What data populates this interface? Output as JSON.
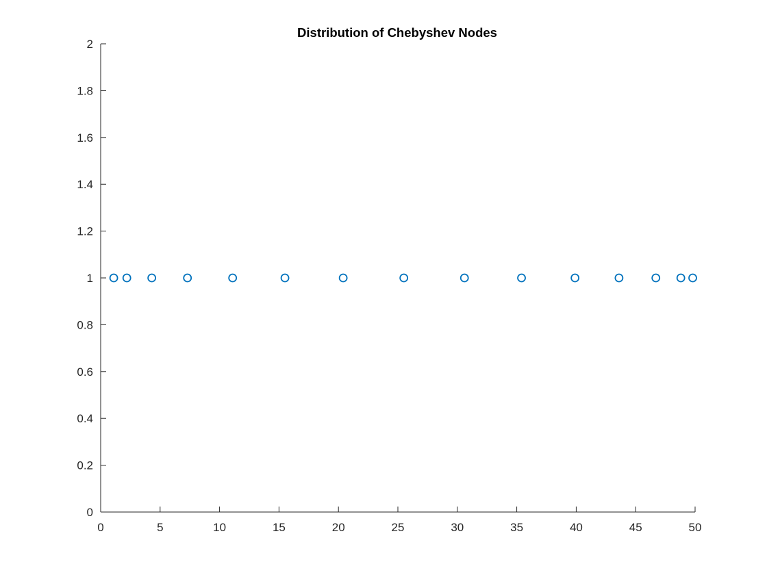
{
  "chart_data": {
    "type": "scatter",
    "title": "Distribution of Chebyshev Nodes",
    "xlabel": "",
    "ylabel": "",
    "xlim": [
      0,
      50
    ],
    "ylim": [
      0,
      2
    ],
    "xticks": [
      0,
      5,
      10,
      15,
      20,
      25,
      30,
      35,
      40,
      45,
      50
    ],
    "yticks": [
      0,
      0.2,
      0.4,
      0.6,
      0.8,
      1,
      1.2,
      1.4,
      1.6,
      1.8,
      2
    ],
    "xtick_labels": [
      "0",
      "5",
      "10",
      "15",
      "20",
      "25",
      "30",
      "35",
      "40",
      "45",
      "50"
    ],
    "ytick_labels": [
      "0",
      "0.2",
      "0.4",
      "0.6",
      "0.8",
      "1",
      "1.2",
      "1.4",
      "1.6",
      "1.8",
      "2"
    ],
    "grid": false,
    "marker": "circle-open",
    "marker_color": "#0072BD",
    "series": [
      {
        "x": [
          1.1,
          2.2,
          4.3,
          7.3,
          11.1,
          15.5,
          20.4,
          25.5,
          30.6,
          35.4,
          39.9,
          43.6,
          46.7,
          48.8,
          49.8
        ],
        "y": [
          1,
          1,
          1,
          1,
          1,
          1,
          1,
          1,
          1,
          1,
          1,
          1,
          1,
          1,
          1
        ]
      }
    ]
  }
}
